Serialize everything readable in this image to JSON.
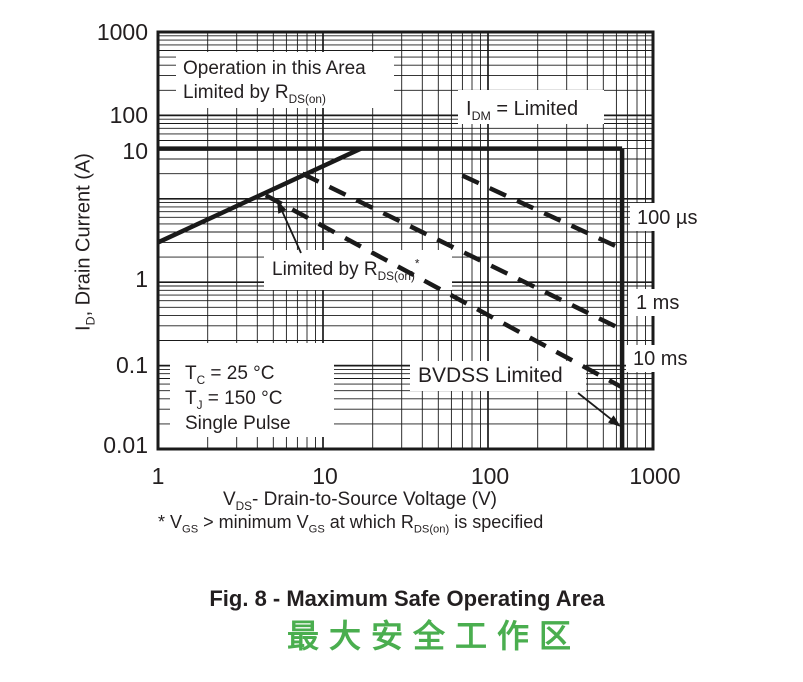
{
  "figure": {
    "caption_en": "Fig. 8 - Maximum Safe Operating Area",
    "caption_zh": "最大安全工作区",
    "caption_zh_color": "#4aae4f",
    "line_color": "#1a1a1a"
  },
  "axes": {
    "x": {
      "label_pre": "V",
      "label_sub": "DS",
      "label_post": "- Drain-to-Source Voltage (V)",
      "ticks": [
        "1",
        "10",
        "100",
        "1000"
      ]
    },
    "y": {
      "label_pre": "I",
      "label_sub": "D",
      "label_post": ", Drain Current (A)",
      "ticks": [
        "1000",
        "100",
        "10",
        "1",
        "0.1",
        "0.01"
      ]
    }
  },
  "footnote": {
    "p1": "* V",
    "s1": "GS",
    "p2": " > minimum V",
    "s2": "GS",
    "p3": " at which R",
    "s3": "DS(on)",
    "p4": " is specified"
  },
  "annotations": {
    "operation_area": {
      "line1": "Operation in this Area",
      "line2_pre": "Limited by R",
      "line2_sub": "DS(on)"
    },
    "idm": {
      "pre": "I",
      "sub": "DM",
      "post": " = Limited"
    },
    "limited_by": {
      "pre": "Limited by R",
      "sub": "DS(on)",
      "sup": "*"
    },
    "conditions": {
      "l1_pre": "T",
      "l1_sub": "C",
      "l1_post": " = 25 °C",
      "l2_pre": "T",
      "l2_sub": "J",
      "l2_post": " = 150 °C",
      "l3": "Single Pulse"
    },
    "bvdss": "BVDSS Limited",
    "t_100us": "100 µs",
    "t_1ms": "1 ms",
    "t_10ms": "10 ms"
  },
  "chart_data": {
    "type": "line",
    "title": "Fig. 8 - Maximum Safe Operating Area",
    "xlabel": "VDS - Drain-to-Source Voltage (V)",
    "ylabel": "ID, Drain Current (A)",
    "xscale": "log",
    "yscale": "log",
    "xlim": [
      1,
      1000
    ],
    "ylim": [
      0.01,
      1000
    ],
    "grid": "log-log major and minor gridlines on",
    "conditions": [
      "TC = 25 °C",
      "TJ = 150 °C",
      "Single Pulse"
    ],
    "series": [
      {
        "name": "rdson-limit",
        "label": "Limited by RDS(on)*",
        "style": "solid",
        "points": [
          [
            1,
            3
          ],
          [
            17,
            40
          ]
        ]
      },
      {
        "name": "idm-limit",
        "label": "IDM = Limited",
        "style": "solid",
        "points": [
          [
            1,
            40
          ],
          [
            650,
            40
          ]
        ]
      },
      {
        "name": "bvdss-limit",
        "label": "BVDSS Limited",
        "style": "solid",
        "points": [
          [
            650,
            40
          ],
          [
            650,
            0.01
          ]
        ]
      },
      {
        "name": "pulse-100us",
        "label": "100 µs",
        "style": "dashed",
        "points": [
          [
            70,
            19
          ],
          [
            650,
            2.5
          ]
        ]
      },
      {
        "name": "pulse-1ms",
        "label": "1 ms",
        "style": "dashed",
        "points": [
          [
            7.5,
            20
          ],
          [
            650,
            0.27
          ]
        ]
      },
      {
        "name": "pulse-10ms",
        "label": "10 ms",
        "style": "dashed",
        "points": [
          [
            4.5,
            11
          ],
          [
            650,
            0.055
          ]
        ]
      }
    ]
  }
}
